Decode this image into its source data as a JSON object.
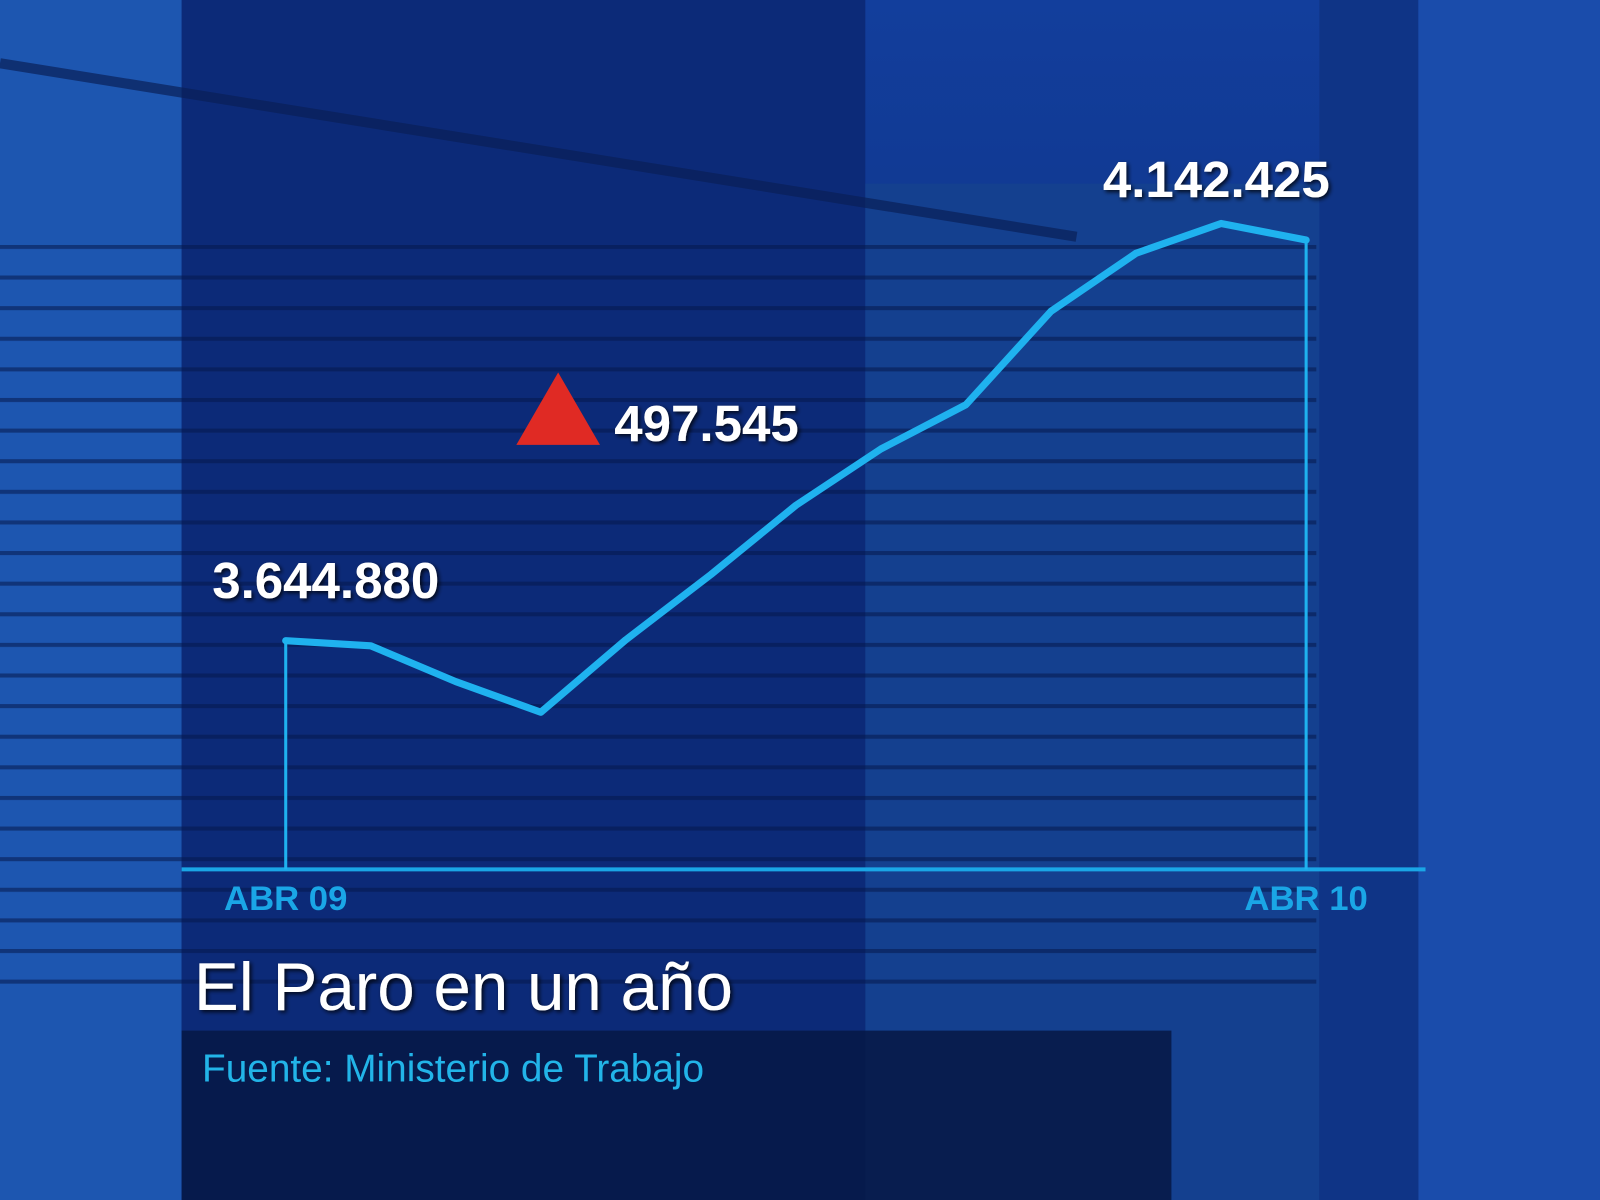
{
  "chart_data": {
    "type": "line",
    "title": "El Paro en un año",
    "subtitle": "Fuente: Ministerio de Trabajo",
    "categories": [
      "ABR 09",
      null,
      null,
      null,
      null,
      null,
      null,
      null,
      null,
      null,
      null,
      null,
      "ABR 10"
    ],
    "series": [
      {
        "color": "#1fb2ef",
        "values": [
          3644880,
          3638550,
          3594000,
          3556000,
          3646000,
          3727000,
          3813000,
          3883000,
          3938000,
          4054000,
          4126000,
          4163000,
          4142425
        ],
        "value_labels": [
          "3.644.880",
          null,
          null,
          null,
          null,
          null,
          null,
          null,
          null,
          null,
          null,
          null,
          "4.142.425"
        ]
      }
    ],
    "annotations": [
      {
        "value": 497545,
        "label": "497.545",
        "color": "#e02a24"
      }
    ]
  }
}
